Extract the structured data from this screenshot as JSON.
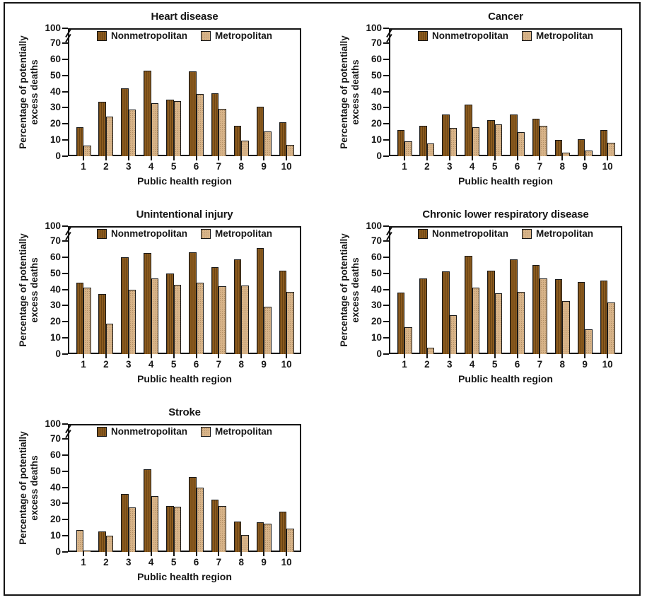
{
  "figure": {
    "background": "#ffffff",
    "border_color": "#141414"
  },
  "shared": {
    "y_axis_label_line1": "Percentage of potentially",
    "y_axis_label_line2": "excess deaths",
    "x_axis_label": "Public health region",
    "legend_labels": [
      "Nonmetropolitan",
      "Metropolitan"
    ],
    "colors": {
      "nonmetropolitan_fill": "#8a5a1e",
      "metropolitan_fill": "#d7b388",
      "outline": "#1a1a1a",
      "text": "#161616"
    },
    "y_ticks": [
      0,
      10,
      20,
      30,
      40,
      50,
      60,
      70
    ],
    "y_top_tick": 100,
    "axis_break_between": [
      70,
      100
    ],
    "x_categories": [
      "1",
      "2",
      "3",
      "4",
      "5",
      "6",
      "7",
      "8",
      "9",
      "10"
    ]
  },
  "chart_data": [
    {
      "type": "bar",
      "title": "Heart disease",
      "xlabel": "Public health region",
      "ylabel": "Percentage of potentially excess deaths",
      "ylim": [
        0,
        100
      ],
      "y_ticks": [
        0,
        10,
        20,
        30,
        40,
        50,
        60,
        70,
        100
      ],
      "axis_break_between": [
        70,
        100
      ],
      "legend_position": "top-center-inside",
      "grid": false,
      "categories": [
        "1",
        "2",
        "3",
        "4",
        "5",
        "6",
        "7",
        "8",
        "9",
        "10"
      ],
      "series": [
        {
          "name": "Nonmetropolitan",
          "values": [
            18,
            33.5,
            42,
            53,
            35,
            52.5,
            39,
            19,
            30.5,
            21
          ]
        },
        {
          "name": "Metropolitan",
          "values": [
            6.5,
            24.5,
            29,
            33,
            34,
            38.5,
            29.5,
            9.5,
            15.5,
            7
          ]
        }
      ]
    },
    {
      "type": "bar",
      "title": "Cancer",
      "xlabel": "Public health region",
      "ylabel": "Percentage of potentially excess deaths",
      "ylim": [
        0,
        100
      ],
      "y_ticks": [
        0,
        10,
        20,
        30,
        40,
        50,
        60,
        70,
        100
      ],
      "axis_break_between": [
        70,
        100
      ],
      "legend_position": "top-center-inside",
      "grid": false,
      "categories": [
        "1",
        "2",
        "3",
        "4",
        "5",
        "6",
        "7",
        "8",
        "9",
        "10"
      ],
      "series": [
        {
          "name": "Nonmetropolitan",
          "values": [
            16,
            19,
            26,
            32,
            22.5,
            26,
            23,
            10,
            10.5,
            16
          ]
        },
        {
          "name": "Metropolitan",
          "values": [
            9,
            8,
            17.5,
            18,
            19.5,
            15,
            19,
            2,
            3.5,
            8.5
          ]
        }
      ]
    },
    {
      "type": "bar",
      "title": "Unintentional injury",
      "xlabel": "Public health region",
      "ylabel": "Percentage of potentially excess deaths",
      "ylim": [
        0,
        100
      ],
      "y_ticks": [
        0,
        10,
        20,
        30,
        40,
        50,
        60,
        70,
        100
      ],
      "axis_break_between": [
        70,
        100
      ],
      "legend_position": "top-center-inside",
      "grid": false,
      "categories": [
        "1",
        "2",
        "3",
        "4",
        "5",
        "6",
        "7",
        "8",
        "9",
        "10"
      ],
      "series": [
        {
          "name": "Nonmetropolitan",
          "values": [
            44,
            37,
            60,
            62.5,
            50,
            63,
            54,
            58.5,
            65.5,
            51.5
          ]
        },
        {
          "name": "Metropolitan",
          "values": [
            41,
            19,
            40,
            47,
            43,
            44,
            42,
            42.5,
            29.5,
            38.5
          ]
        }
      ]
    },
    {
      "type": "bar",
      "title": "Chronic lower respiratory disease",
      "xlabel": "Public health region",
      "ylabel": "Percentage of potentially excess deaths",
      "ylim": [
        0,
        100
      ],
      "y_ticks": [
        0,
        10,
        20,
        30,
        40,
        50,
        60,
        70,
        100
      ],
      "axis_break_between": [
        70,
        100
      ],
      "legend_position": "top-center-inside",
      "grid": false,
      "categories": [
        "1",
        "2",
        "3",
        "4",
        "5",
        "6",
        "7",
        "8",
        "9",
        "10"
      ],
      "series": [
        {
          "name": "Nonmetropolitan",
          "values": [
            38,
            47,
            51,
            61,
            51.5,
            58.5,
            55,
            46.5,
            44.5,
            45.5
          ]
        },
        {
          "name": "Metropolitan",
          "values": [
            16.5,
            4,
            24,
            41,
            37.5,
            38.5,
            47,
            33,
            15.5,
            32
          ]
        }
      ]
    },
    {
      "type": "bar",
      "title": "Stroke",
      "xlabel": "Public health region",
      "ylabel": "Percentage of potentially excess deaths",
      "ylim": [
        0,
        100
      ],
      "y_ticks": [
        0,
        10,
        20,
        30,
        40,
        50,
        60,
        70,
        100
      ],
      "axis_break_between": [
        70,
        100
      ],
      "legend_position": "top-center-inside",
      "grid": false,
      "categories": [
        "1",
        "2",
        "3",
        "4",
        "5",
        "6",
        "7",
        "8",
        "9",
        "10"
      ],
      "series": [
        {
          "name": "Nonmetropolitan",
          "values": [
            13.5,
            12.5,
            36,
            51,
            28.5,
            46.5,
            32.5,
            19,
            18.5,
            25
          ]
        },
        {
          "name": "Metropolitan",
          "values": [
            0.5,
            10,
            27.5,
            34.5,
            28,
            40,
            28.5,
            10.5,
            17.5,
            14.5
          ]
        }
      ],
      "fill_overrides": [
        {
          "series_index": 0,
          "value_index": 0,
          "fill_series_index": 1
        }
      ]
    }
  ]
}
